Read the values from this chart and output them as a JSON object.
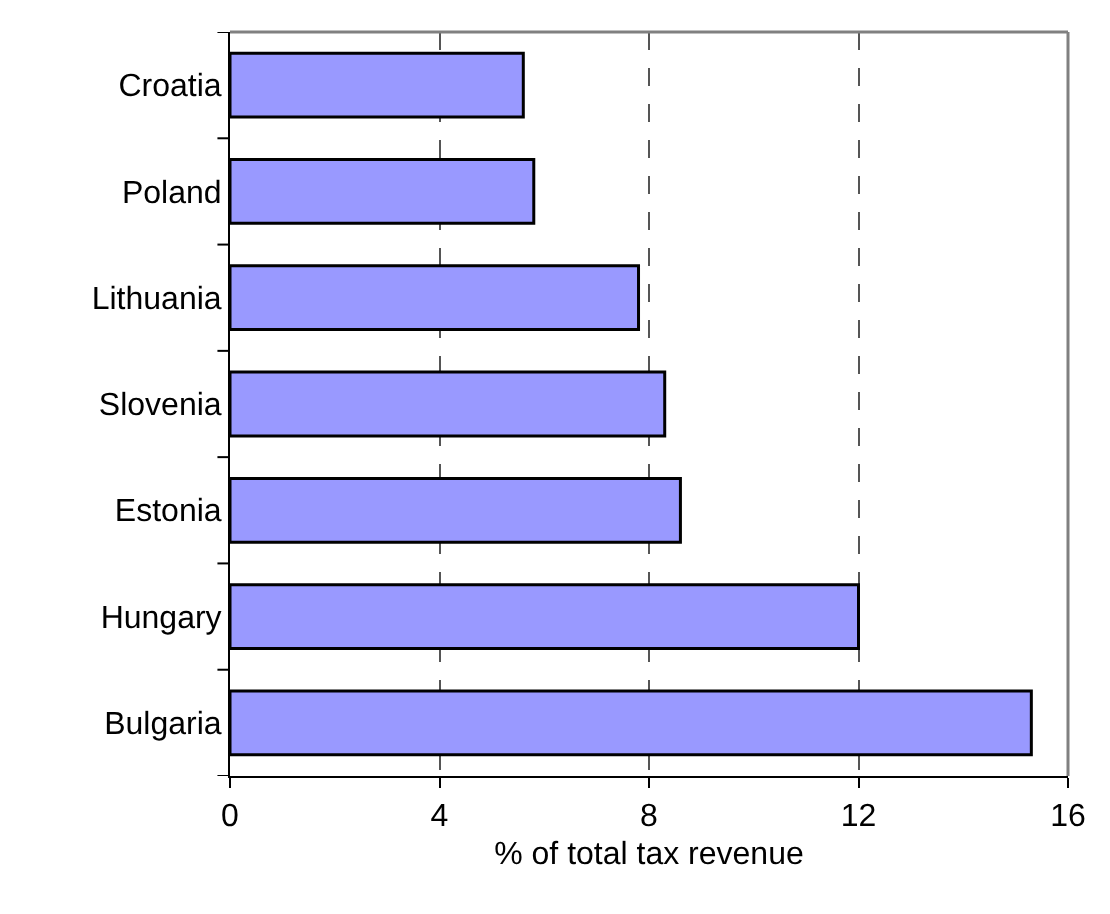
{
  "chart_data": {
    "type": "bar",
    "orientation": "horizontal",
    "categories": [
      "Croatia",
      "Poland",
      "Lithuania",
      "Slovenia",
      "Estonia",
      "Hungary",
      "Bulgaria"
    ],
    "values": [
      5.6,
      5.8,
      7.8,
      8.3,
      8.6,
      12.0,
      15.3
    ],
    "color": "#9999ff",
    "xlabel": "% of total tax revenue",
    "xlim": [
      0,
      16
    ],
    "xticks": [
      0,
      4,
      8,
      12,
      16
    ],
    "grid": "x"
  }
}
